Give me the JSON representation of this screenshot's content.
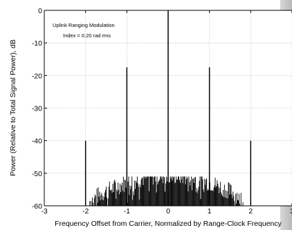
{
  "chart_data": {
    "type": "bar",
    "title": "",
    "xlabel": "Frequency Offset from Carrier, Normalized by Range-Clock Frequency",
    "ylabel": "Power (Relative to Total Signal Power), dB",
    "xlim": [
      -3,
      3
    ],
    "ylim": [
      -60,
      0
    ],
    "xticks": [
      -3,
      -2,
      -1,
      0,
      1,
      2,
      3
    ],
    "yticks": [
      0,
      -10,
      -20,
      -30,
      -40,
      -50,
      -60
    ],
    "xtick_labels": [
      "-3",
      "-2",
      "-1",
      "0",
      "1",
      "2",
      "3"
    ],
    "ytick_labels": [
      "0",
      "-10",
      "-20",
      "-30",
      "-40",
      "-50",
      "-60"
    ],
    "grid": true,
    "annotation": [
      "Uplink Ranging Modulation",
      "Index = 0.20 rad rms"
    ],
    "series": [
      {
        "values": [
          {
            "x": -2,
            "y": -40
          },
          {
            "x": -1,
            "y": -17.5
          },
          {
            "x": 0,
            "y": 0
          },
          {
            "x": 1,
            "y": -17.5
          },
          {
            "x": 2,
            "y": -40
          }
        ]
      }
    ],
    "noise_floor": {
      "x_range": [
        -1.9,
        1.9
      ],
      "peak_db": -51
    }
  }
}
